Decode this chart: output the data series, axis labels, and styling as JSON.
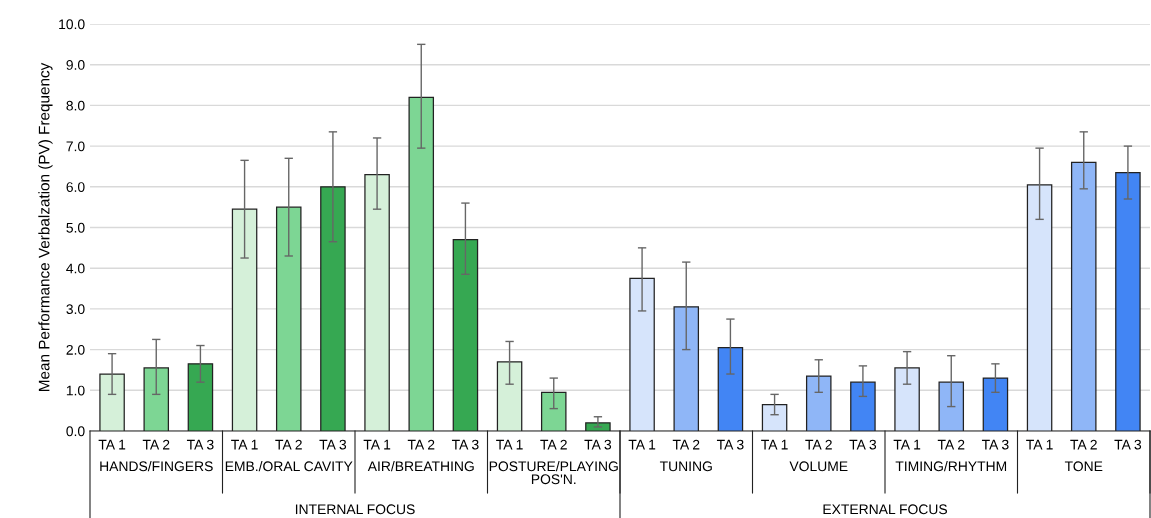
{
  "chart_data": {
    "type": "bar",
    "ylabel": "Mean Performance Verbalzation (PV) Frequency",
    "categories": [
      "TA 1",
      "TA 2",
      "TA 3",
      "TA 1",
      "TA 2",
      "TA 3",
      "TA 1",
      "TA 2",
      "TA 3",
      "TA 1",
      "TA 2",
      "TA 3",
      "TA 1",
      "TA 2",
      "TA 3",
      "TA 1",
      "TA 2",
      "TA 3",
      "TA 1",
      "TA 2",
      "TA 3",
      "TA 1",
      "TA 2",
      "TA 3"
    ],
    "values": [
      1.4,
      1.55,
      1.65,
      5.45,
      5.5,
      6.0,
      6.3,
      8.2,
      4.7,
      1.7,
      0.95,
      0.2,
      3.75,
      3.05,
      2.05,
      0.65,
      1.35,
      1.2,
      1.55,
      1.2,
      1.3,
      6.05,
      6.6,
      6.35
    ],
    "errors": [
      [
        0.9,
        1.9
      ],
      [
        0.9,
        2.25
      ],
      [
        1.2,
        2.1
      ],
      [
        4.25,
        6.65
      ],
      [
        4.3,
        6.7
      ],
      [
        4.65,
        7.35
      ],
      [
        5.45,
        7.2
      ],
      [
        6.95,
        9.5
      ],
      [
        3.85,
        5.6
      ],
      [
        1.15,
        2.2
      ],
      [
        0.55,
        1.3
      ],
      [
        0.1,
        0.35
      ],
      [
        2.95,
        4.5
      ],
      [
        2.0,
        4.15
      ],
      [
        1.4,
        2.75
      ],
      [
        0.4,
        0.9
      ],
      [
        0.95,
        1.75
      ],
      [
        0.85,
        1.6
      ],
      [
        1.15,
        1.95
      ],
      [
        0.6,
        1.85
      ],
      [
        0.95,
        1.65
      ],
      [
        5.2,
        6.95
      ],
      [
        5.95,
        7.35
      ],
      [
        5.7,
        7.0
      ]
    ],
    "colors": [
      "#d5f0d9",
      "#7dd694",
      "#36a852",
      "#d5f0d9",
      "#7dd694",
      "#36a852",
      "#d5f0d9",
      "#7dd694",
      "#36a852",
      "#d5f0d9",
      "#7dd694",
      "#36a852",
      "#d6e4fb",
      "#8fb6f7",
      "#4285f4",
      "#d6e4fb",
      "#8fb6f7",
      "#4285f4",
      "#d6e4fb",
      "#8fb6f7",
      "#4285f4",
      "#d6e4fb",
      "#8fb6f7",
      "#4285f4"
    ],
    "ylim": [
      0,
      10
    ],
    "yticks": [
      {
        "value": 0,
        "label": "0.0"
      },
      {
        "value": 1,
        "label": "1.0"
      },
      {
        "value": 2,
        "label": "2.0"
      },
      {
        "value": 3,
        "label": "3.0"
      },
      {
        "value": 4,
        "label": "4.0"
      },
      {
        "value": 5,
        "label": "5.0"
      },
      {
        "value": 6,
        "label": "6.0"
      },
      {
        "value": 7,
        "label": "7.0"
      },
      {
        "value": 8,
        "label": "8.0"
      },
      {
        "value": 9,
        "label": "9.0"
      },
      {
        "value": 10,
        "label": "10.0"
      }
    ],
    "grid": "y",
    "annotations": [
      "HANDS/FINGERS",
      "EMB./ORAL CAVITY",
      "AIR/BREATHING",
      "POSTURE/PLAYING POS'N.",
      "TUNING",
      "VOLUME",
      "TIMING/RHYTHM",
      "TONE",
      "INTERNAL FOCUS",
      "EXTERNAL FOCUS"
    ]
  }
}
